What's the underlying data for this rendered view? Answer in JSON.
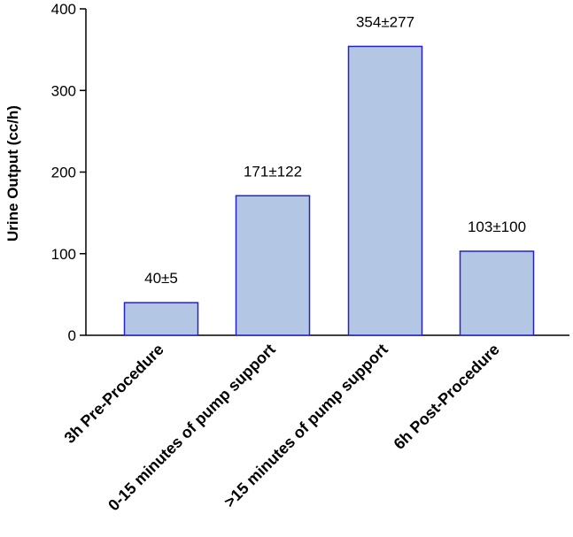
{
  "chart_data": {
    "type": "bar",
    "title": "",
    "xlabel": "",
    "ylabel": "Urine  Output  (cc/h)",
    "ylim": [
      0,
      400
    ],
    "yticks": [
      0,
      100,
      200,
      300,
      400
    ],
    "grid": false,
    "categories": [
      "3h Pre-Procedure",
      "0-15 minutes of pump support",
      ">15 minutes of pump support",
      "6h Post-Procedure"
    ],
    "values": [
      40,
      171,
      354,
      103
    ],
    "data_labels": [
      "40±5",
      "171±122",
      "354±277",
      "103±100"
    ],
    "colors": {
      "bar_fill": "#b3c6e4",
      "bar_stroke": "#2323c8",
      "axis": "#000000"
    }
  }
}
